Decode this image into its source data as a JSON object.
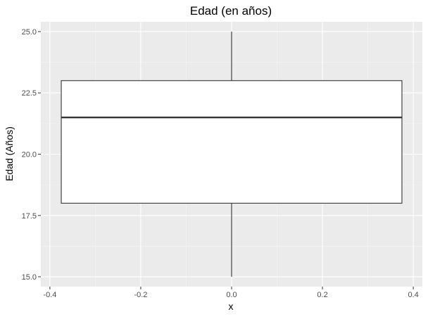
{
  "chart_data": {
    "type": "boxplot",
    "title": "Edad (en años)",
    "xlabel": "x",
    "ylabel": "Edad (Años)",
    "xlim": [
      -0.42,
      0.42
    ],
    "ylim": [
      14.6,
      25.4
    ],
    "x_ticks": [
      -0.4,
      -0.2,
      0.0,
      0.2,
      0.4
    ],
    "x_tick_labels": [
      "-0.4",
      "-0.2",
      "0.0",
      "0.2",
      "0.4"
    ],
    "y_ticks": [
      15.0,
      17.5,
      20.0,
      22.5,
      25.0
    ],
    "y_tick_labels": [
      "15.0",
      "17.5",
      "20.0",
      "22.5",
      "25.0"
    ],
    "grid": true,
    "box": {
      "x_center": 0.0,
      "x_from": -0.375,
      "x_to": 0.375,
      "min": 15.0,
      "q1": 18.0,
      "median": 21.5,
      "q3": 23.0,
      "max": 25.0
    },
    "colors": {
      "panel": "#ebebeb",
      "grid_major": "#ffffff",
      "grid_minor": "#f5f5f5",
      "box_fill": "#ffffff",
      "box_line": "#333333",
      "tick_text": "#4d4d4d",
      "axis_title": "#000000"
    }
  }
}
